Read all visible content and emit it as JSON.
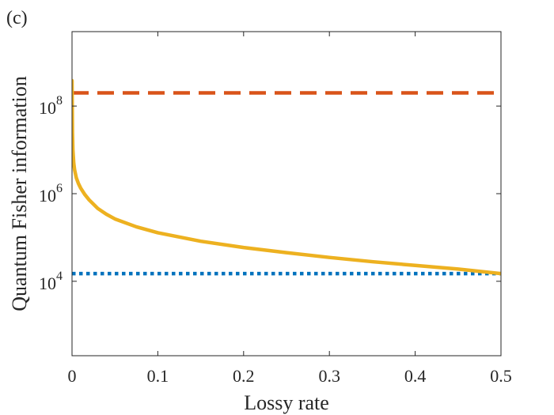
{
  "panel_label": "(c)",
  "chart_data": {
    "type": "line",
    "xlabel": "Lossy rate",
    "ylabel": "Quantum Fisher information",
    "xlim": [
      0,
      0.5
    ],
    "ylim": [
      200,
      5000000000
    ],
    "y_scale": "log",
    "grid": false,
    "box": true,
    "x_ticks": [
      0,
      0.1,
      0.2,
      0.3,
      0.4,
      0.5
    ],
    "x_tick_labels": [
      "0",
      "0.1",
      "0.2",
      "0.3",
      "0.4",
      "0.5"
    ],
    "y_ticks": [
      10000,
      1000000,
      100000000
    ],
    "y_tick_labels": [
      {
        "base": "10",
        "exp": "4"
      },
      {
        "base": "10",
        "exp": "6"
      },
      {
        "base": "10",
        "exp": "8"
      }
    ],
    "series": [
      {
        "style": "dashed",
        "color": "#D95319",
        "kind": "hline",
        "values": [
          200000000
        ]
      },
      {
        "style": "dotted",
        "color": "#0072BD",
        "kind": "hline",
        "values": [
          15000
        ]
      },
      {
        "style": "solid",
        "color": "#EDB120",
        "kind": "curve",
        "x": [
          0.0,
          0.0005,
          0.001,
          0.002,
          0.003,
          0.005,
          0.0075,
          0.01,
          0.015,
          0.02,
          0.03,
          0.04,
          0.05,
          0.075,
          0.1,
          0.15,
          0.2,
          0.25,
          0.3,
          0.35,
          0.4,
          0.45,
          0.5
        ],
        "y": [
          380000000,
          25000000,
          10000000,
          5000000,
          3500000,
          2300000,
          1700000,
          1350000,
          950000,
          720000,
          460000,
          340000,
          265000,
          175000,
          128000,
          82000,
          59000,
          45000,
          35000,
          28000,
          23000,
          19000,
          15000
        ]
      }
    ]
  },
  "colors": {
    "axes": "#262626",
    "background": "#ffffff"
  }
}
